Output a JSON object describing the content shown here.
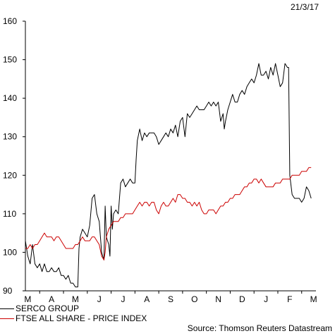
{
  "chart_data": {
    "type": "line",
    "date_label": "21/3/17",
    "x_tick_labels": [
      "M",
      "A",
      "M",
      "J",
      "J",
      "A",
      "S",
      "O",
      "N",
      "D",
      "J",
      "F",
      "M"
    ],
    "ylim": [
      90,
      160
    ],
    "yticks": [
      90,
      100,
      110,
      120,
      130,
      140,
      150,
      160
    ],
    "grid": false,
    "series": [
      {
        "name": "SERCO GROUP",
        "color": "#000000",
        "points": [
          [
            0,
            103
          ],
          [
            0.1,
            99
          ],
          [
            0.2,
            97
          ],
          [
            0.3,
            102
          ],
          [
            0.4,
            97
          ],
          [
            0.5,
            96
          ],
          [
            0.6,
            97
          ],
          [
            0.7,
            95
          ],
          [
            0.8,
            97
          ],
          [
            0.9,
            95
          ],
          [
            1.0,
            95
          ],
          [
            1.1,
            96
          ],
          [
            1.2,
            95
          ],
          [
            1.3,
            95
          ],
          [
            1.4,
            96
          ],
          [
            1.5,
            94
          ],
          [
            1.6,
            94
          ],
          [
            1.7,
            93
          ],
          [
            1.8,
            94
          ],
          [
            1.9,
            92
          ],
          [
            2.0,
            92
          ],
          [
            2.1,
            91
          ],
          [
            2.2,
            91
          ],
          [
            2.25,
            101
          ],
          [
            2.3,
            104
          ],
          [
            2.4,
            106
          ],
          [
            2.5,
            105
          ],
          [
            2.6,
            104
          ],
          [
            2.7,
            107
          ],
          [
            2.8,
            114
          ],
          [
            2.9,
            115
          ],
          [
            3.0,
            110
          ],
          [
            3.1,
            108
          ],
          [
            3.2,
            100
          ],
          [
            3.3,
            98
          ],
          [
            3.35,
            112
          ],
          [
            3.4,
            104
          ],
          [
            3.5,
            102
          ],
          [
            3.55,
            99
          ],
          [
            3.6,
            112
          ],
          [
            3.65,
            106
          ],
          [
            3.7,
            110
          ],
          [
            3.8,
            111
          ],
          [
            3.9,
            110
          ],
          [
            4.0,
            118
          ],
          [
            4.1,
            119
          ],
          [
            4.2,
            117
          ],
          [
            4.3,
            118
          ],
          [
            4.4,
            119
          ],
          [
            4.5,
            118
          ],
          [
            4.6,
            118
          ],
          [
            4.65,
            124
          ],
          [
            4.7,
            129
          ],
          [
            4.8,
            132
          ],
          [
            4.9,
            129
          ],
          [
            5.0,
            131
          ],
          [
            5.1,
            130
          ],
          [
            5.2,
            131
          ],
          [
            5.3,
            131
          ],
          [
            5.4,
            131
          ],
          [
            5.5,
            130
          ],
          [
            5.6,
            128
          ],
          [
            5.7,
            129
          ],
          [
            5.8,
            130
          ],
          [
            5.9,
            131
          ],
          [
            6.0,
            130
          ],
          [
            6.1,
            132
          ],
          [
            6.2,
            131
          ],
          [
            6.3,
            133
          ],
          [
            6.4,
            130
          ],
          [
            6.5,
            134
          ],
          [
            6.6,
            135
          ],
          [
            6.7,
            130
          ],
          [
            6.8,
            136
          ],
          [
            6.9,
            135
          ],
          [
            7.0,
            136
          ],
          [
            7.1,
            137
          ],
          [
            7.2,
            138
          ],
          [
            7.3,
            137
          ],
          [
            7.4,
            137
          ],
          [
            7.5,
            137
          ],
          [
            7.6,
            138
          ],
          [
            7.7,
            139
          ],
          [
            7.8,
            138
          ],
          [
            7.9,
            139
          ],
          [
            8.0,
            138
          ],
          [
            8.1,
            139
          ],
          [
            8.2,
            134
          ],
          [
            8.3,
            136
          ],
          [
            8.35,
            132
          ],
          [
            8.4,
            134
          ],
          [
            8.5,
            137
          ],
          [
            8.6,
            139
          ],
          [
            8.7,
            141
          ],
          [
            8.8,
            139
          ],
          [
            8.9,
            139
          ],
          [
            9.0,
            141
          ],
          [
            9.1,
            142
          ],
          [
            9.2,
            141
          ],
          [
            9.3,
            143
          ],
          [
            9.4,
            144
          ],
          [
            9.5,
            145
          ],
          [
            9.6,
            144
          ],
          [
            9.7,
            146
          ],
          [
            9.8,
            149
          ],
          [
            9.9,
            146
          ],
          [
            10.0,
            146
          ],
          [
            10.1,
            147
          ],
          [
            10.2,
            145
          ],
          [
            10.3,
            148
          ],
          [
            10.4,
            146
          ],
          [
            10.5,
            149
          ],
          [
            10.6,
            146
          ],
          [
            10.7,
            143
          ],
          [
            10.8,
            144
          ],
          [
            10.9,
            149
          ],
          [
            11.0,
            148
          ],
          [
            11.05,
            148
          ],
          [
            11.1,
            120
          ],
          [
            11.2,
            115
          ],
          [
            11.3,
            114
          ],
          [
            11.4,
            114
          ],
          [
            11.5,
            114
          ],
          [
            11.6,
            113
          ],
          [
            11.7,
            114
          ],
          [
            11.8,
            117
          ],
          [
            11.9,
            116
          ],
          [
            12.0,
            114
          ]
        ]
      },
      {
        "name": "FTSE ALL SHARE - PRICE INDEX",
        "color": "#cc0000",
        "points": [
          [
            0,
            101
          ],
          [
            0.1,
            101
          ],
          [
            0.2,
            102
          ],
          [
            0.3,
            101
          ],
          [
            0.4,
            102
          ],
          [
            0.5,
            102
          ],
          [
            0.6,
            103
          ],
          [
            0.7,
            104
          ],
          [
            0.8,
            105
          ],
          [
            0.9,
            104
          ],
          [
            1.0,
            104
          ],
          [
            1.1,
            104
          ],
          [
            1.2,
            103
          ],
          [
            1.3,
            104
          ],
          [
            1.4,
            104
          ],
          [
            1.5,
            103
          ],
          [
            1.6,
            102
          ],
          [
            1.7,
            101
          ],
          [
            1.8,
            101
          ],
          [
            1.9,
            101
          ],
          [
            2.0,
            101
          ],
          [
            2.1,
            102
          ],
          [
            2.2,
            102
          ],
          [
            2.3,
            103
          ],
          [
            2.4,
            104
          ],
          [
            2.5,
            103
          ],
          [
            2.6,
            103
          ],
          [
            2.7,
            103
          ],
          [
            2.8,
            104
          ],
          [
            2.9,
            104
          ],
          [
            3.0,
            103
          ],
          [
            3.1,
            102
          ],
          [
            3.2,
            99
          ],
          [
            3.3,
            98
          ],
          [
            3.35,
            100
          ],
          [
            3.4,
            104
          ],
          [
            3.5,
            106
          ],
          [
            3.6,
            107
          ],
          [
            3.7,
            108
          ],
          [
            3.8,
            108
          ],
          [
            3.9,
            108
          ],
          [
            4.0,
            109
          ],
          [
            4.1,
            109
          ],
          [
            4.2,
            110
          ],
          [
            4.3,
            110
          ],
          [
            4.4,
            110
          ],
          [
            4.5,
            110
          ],
          [
            4.6,
            111
          ],
          [
            4.7,
            112
          ],
          [
            4.8,
            113
          ],
          [
            4.9,
            112
          ],
          [
            5.0,
            113
          ],
          [
            5.1,
            113
          ],
          [
            5.2,
            112
          ],
          [
            5.3,
            113
          ],
          [
            5.4,
            113
          ],
          [
            5.5,
            111
          ],
          [
            5.6,
            110
          ],
          [
            5.7,
            112
          ],
          [
            5.8,
            113
          ],
          [
            5.9,
            112
          ],
          [
            6.0,
            112
          ],
          [
            6.1,
            113
          ],
          [
            6.2,
            114
          ],
          [
            6.3,
            113
          ],
          [
            6.4,
            115
          ],
          [
            6.5,
            115
          ],
          [
            6.6,
            114
          ],
          [
            6.7,
            114
          ],
          [
            6.8,
            113
          ],
          [
            6.9,
            113
          ],
          [
            7.0,
            112
          ],
          [
            7.1,
            113
          ],
          [
            7.2,
            112
          ],
          [
            7.3,
            113
          ],
          [
            7.4,
            111
          ],
          [
            7.5,
            110
          ],
          [
            7.6,
            110
          ],
          [
            7.7,
            111
          ],
          [
            7.8,
            111
          ],
          [
            7.9,
            111
          ],
          [
            8.0,
            110
          ],
          [
            8.1,
            111
          ],
          [
            8.2,
            112
          ],
          [
            8.3,
            112
          ],
          [
            8.4,
            113
          ],
          [
            8.5,
            113
          ],
          [
            8.6,
            114
          ],
          [
            8.7,
            114
          ],
          [
            8.8,
            115
          ],
          [
            8.9,
            115
          ],
          [
            9.0,
            115
          ],
          [
            9.1,
            116
          ],
          [
            9.2,
            117
          ],
          [
            9.3,
            117
          ],
          [
            9.4,
            118
          ],
          [
            9.5,
            118
          ],
          [
            9.6,
            119
          ],
          [
            9.7,
            119
          ],
          [
            9.8,
            118
          ],
          [
            9.9,
            119
          ],
          [
            10.0,
            118
          ],
          [
            10.1,
            117
          ],
          [
            10.2,
            117
          ],
          [
            10.3,
            117
          ],
          [
            10.4,
            117
          ],
          [
            10.5,
            118
          ],
          [
            10.6,
            118
          ],
          [
            10.7,
            118
          ],
          [
            10.8,
            119
          ],
          [
            10.9,
            119
          ],
          [
            11.0,
            119
          ],
          [
            11.1,
            119
          ],
          [
            11.2,
            120
          ],
          [
            11.3,
            120
          ],
          [
            11.4,
            120
          ],
          [
            11.5,
            120
          ],
          [
            11.6,
            121
          ],
          [
            11.7,
            121
          ],
          [
            11.8,
            121
          ],
          [
            11.9,
            122
          ],
          [
            12.0,
            122
          ]
        ]
      }
    ]
  },
  "legend": [
    {
      "label": "SERCO GROUP",
      "color": "#000000"
    },
    {
      "label": "FTSE ALL SHARE - PRICE INDEX",
      "color": "#cc0000"
    }
  ],
  "source": "Source: Thomson Reuters Datastream"
}
